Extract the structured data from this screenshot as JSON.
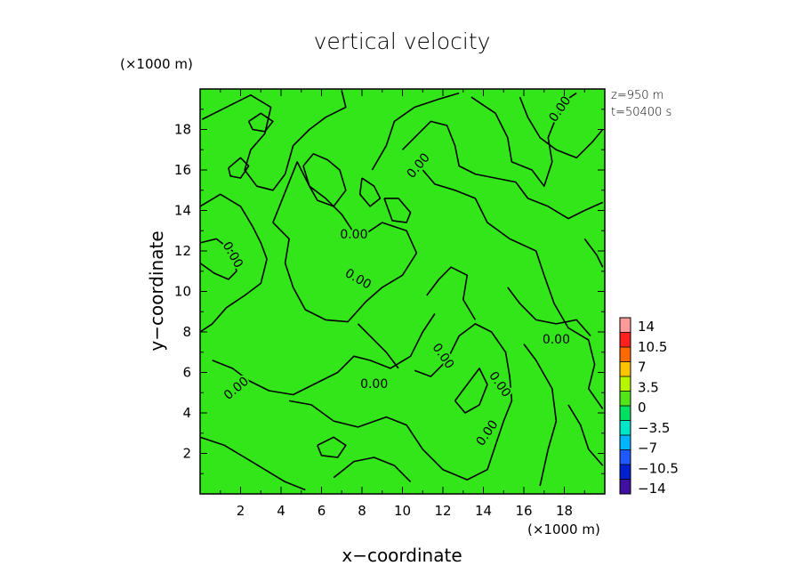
{
  "chart_data": {
    "type": "heatmap",
    "title": "vertical velocity",
    "xlabel": "x−coordinate",
    "ylabel": "y−coordinate",
    "x_unit": "(×1000 m)",
    "y_unit": "(×1000 m)",
    "xlim": [
      0,
      20
    ],
    "ylim": [
      0,
      20
    ],
    "x_ticks": [
      "2",
      "4",
      "6",
      "8",
      "10",
      "12",
      "14",
      "16",
      "18"
    ],
    "y_ticks": [
      "2",
      "4",
      "6",
      "8",
      "10",
      "12",
      "14",
      "16",
      "18"
    ],
    "annotations": [
      "z=950  m",
      "t=50400  s"
    ],
    "contour_level": 0.0,
    "contour_label": "0.00",
    "field_color": "#33e61a",
    "colorbar": {
      "labels": [
        "14",
        "10.5",
        "7",
        "3.5",
        "0",
        "−3.5",
        "−7",
        "−10.5",
        "−14"
      ],
      "colors": [
        "#ff9a9a",
        "#ff2020",
        "#ff6a00",
        "#ffc400",
        "#b8f500",
        "#52e61a",
        "#00e060",
        "#00e6c8",
        "#00b4ff",
        "#1e5aff",
        "#0020d0",
        "#4010a0"
      ]
    },
    "contours": [
      [
        [
          0.1,
          18.5
        ],
        [
          1.5,
          19.2
        ],
        [
          2.5,
          19.7
        ],
        [
          3.5,
          19.1
        ],
        [
          3.2,
          17.8
        ],
        [
          2.5,
          17.0
        ],
        [
          2.2,
          16.0
        ],
        [
          2.8,
          15.2
        ],
        [
          3.6,
          15.0
        ],
        [
          4.2,
          15.8
        ],
        [
          4.6,
          17.2
        ],
        [
          5.4,
          18.0
        ],
        [
          6.2,
          18.6
        ],
        [
          7.2,
          19.1
        ],
        [
          7.0,
          19.9
        ]
      ],
      [
        [
          0.0,
          14.2
        ],
        [
          1.0,
          14.8
        ],
        [
          2.0,
          14.2
        ],
        [
          2.6,
          13.2
        ],
        [
          3.0,
          12.4
        ],
        [
          3.3,
          11.6
        ],
        [
          3.0,
          10.4
        ],
        [
          2.2,
          9.8
        ],
        [
          1.3,
          9.2
        ],
        [
          0.6,
          8.4
        ],
        [
          0.0,
          8.0
        ]
      ],
      [
        [
          0.0,
          12.4
        ],
        [
          0.8,
          12.6
        ],
        [
          1.6,
          12.0
        ],
        [
          1.8,
          11.0
        ],
        [
          1.4,
          10.6
        ],
        [
          0.7,
          10.9
        ],
        [
          0.0,
          11.4
        ]
      ],
      [
        [
          3.6,
          13.4
        ],
        [
          4.4,
          12.6
        ],
        [
          4.2,
          11.4
        ],
        [
          4.6,
          10.2
        ],
        [
          5.2,
          9.1
        ],
        [
          6.2,
          8.6
        ],
        [
          7.3,
          8.5
        ],
        [
          8.2,
          9.5
        ],
        [
          9.0,
          10.2
        ],
        [
          10.0,
          10.8
        ],
        [
          10.7,
          11.9
        ],
        [
          10.2,
          13.0
        ],
        [
          9.0,
          13.4
        ],
        [
          7.8,
          12.6
        ],
        [
          7.0,
          13.8
        ],
        [
          6.2,
          14.6
        ],
        [
          5.4,
          15.2
        ],
        [
          4.8,
          16.4
        ],
        [
          4.4,
          15.4
        ],
        [
          4.0,
          14.4
        ],
        [
          3.6,
          13.4
        ]
      ],
      [
        [
          5.1,
          16.2
        ],
        [
          5.4,
          15.2
        ],
        [
          5.8,
          14.5
        ],
        [
          6.6,
          14.2
        ],
        [
          7.2,
          15.0
        ],
        [
          6.9,
          16.0
        ],
        [
          6.3,
          16.5
        ],
        [
          5.6,
          16.8
        ],
        [
          5.1,
          16.2
        ]
      ],
      [
        [
          8.5,
          16.0
        ],
        [
          9.2,
          17.2
        ],
        [
          9.6,
          18.4
        ],
        [
          10.6,
          19.1
        ],
        [
          11.8,
          19.5
        ],
        [
          12.8,
          19.8
        ]
      ],
      [
        [
          9.1,
          14.6
        ],
        [
          9.8,
          14.6
        ],
        [
          10.4,
          13.9
        ],
        [
          10.2,
          13.4
        ],
        [
          9.5,
          13.5
        ],
        [
          9.1,
          14.6
        ]
      ],
      [
        [
          11.0,
          16.0
        ],
        [
          11.6,
          15.3
        ],
        [
          12.6,
          15.0
        ],
        [
          13.6,
          14.6
        ],
        [
          14.2,
          13.4
        ],
        [
          15.3,
          12.6
        ],
        [
          16.6,
          12.0
        ],
        [
          17.0,
          10.8
        ],
        [
          17.5,
          9.4
        ],
        [
          18.2,
          8.2
        ],
        [
          19.2,
          7.6
        ],
        [
          19.5,
          6.4
        ],
        [
          19.2,
          5.2
        ],
        [
          19.9,
          4.2
        ]
      ],
      [
        [
          0.6,
          6.6
        ],
        [
          1.6,
          6.2
        ],
        [
          2.4,
          5.6
        ],
        [
          3.4,
          5.1
        ],
        [
          4.6,
          4.9
        ],
        [
          5.6,
          5.4
        ],
        [
          6.8,
          6.0
        ],
        [
          7.6,
          6.8
        ],
        [
          8.4,
          6.6
        ],
        [
          9.4,
          6.2
        ],
        [
          10.4,
          6.8
        ],
        [
          11.0,
          8.0
        ],
        [
          11.6,
          8.9
        ]
      ],
      [
        [
          4.4,
          4.6
        ],
        [
          5.5,
          4.4
        ],
        [
          6.6,
          3.6
        ],
        [
          7.8,
          3.3
        ],
        [
          9.2,
          3.8
        ],
        [
          10.2,
          3.4
        ],
        [
          11.0,
          2.2
        ],
        [
          12.0,
          1.2
        ],
        [
          13.2,
          0.7
        ],
        [
          14.2,
          1.2
        ],
        [
          14.6,
          2.4
        ],
        [
          15.0,
          3.6
        ],
        [
          15.4,
          4.6
        ],
        [
          15.3,
          5.8
        ],
        [
          15.1,
          7.0
        ],
        [
          14.4,
          8.0
        ],
        [
          13.6,
          8.4
        ],
        [
          12.8,
          7.8
        ],
        [
          12.2,
          6.6
        ],
        [
          11.4,
          5.8
        ],
        [
          10.6,
          6.1
        ]
      ],
      [
        [
          7.8,
          8.4
        ],
        [
          8.6,
          7.6
        ],
        [
          9.2,
          7.0
        ],
        [
          9.8,
          6.2
        ]
      ],
      [
        [
          11.2,
          9.8
        ],
        [
          11.8,
          10.6
        ],
        [
          12.4,
          11.2
        ],
        [
          13.2,
          10.8
        ],
        [
          13.0,
          9.6
        ],
        [
          13.6,
          8.6
        ]
      ],
      [
        [
          15.2,
          10.2
        ],
        [
          15.8,
          9.4
        ],
        [
          16.6,
          8.6
        ],
        [
          17.6,
          8.4
        ],
        [
          18.6,
          8.6
        ],
        [
          19.3,
          7.8
        ]
      ],
      [
        [
          16.0,
          7.4
        ],
        [
          16.6,
          6.6
        ],
        [
          17.4,
          5.2
        ],
        [
          17.6,
          3.6
        ],
        [
          17.2,
          2.2
        ],
        [
          16.8,
          0.4
        ]
      ],
      [
        [
          10.0,
          17.0
        ],
        [
          10.8,
          17.8
        ],
        [
          11.4,
          18.4
        ],
        [
          12.2,
          18.2
        ],
        [
          12.6,
          17.2
        ],
        [
          12.8,
          16.2
        ],
        [
          13.6,
          15.8
        ],
        [
          14.6,
          15.6
        ],
        [
          15.6,
          15.4
        ],
        [
          16.2,
          14.6
        ],
        [
          17.2,
          14.2
        ],
        [
          18.2,
          13.6
        ],
        [
          19.0,
          14.0
        ],
        [
          19.9,
          14.4
        ]
      ],
      [
        [
          13.4,
          19.6
        ],
        [
          14.6,
          18.8
        ],
        [
          15.2,
          17.6
        ],
        [
          15.4,
          16.4
        ],
        [
          16.4,
          16.0
        ],
        [
          17.0,
          15.2
        ],
        [
          17.4,
          16.4
        ],
        [
          17.2,
          17.6
        ],
        [
          17.6,
          18.6
        ],
        [
          18.0,
          19.4
        ],
        [
          18.6,
          19.8
        ]
      ],
      [
        [
          15.8,
          19.6
        ],
        [
          16.2,
          18.6
        ],
        [
          16.8,
          17.6
        ],
        [
          17.6,
          17.0
        ],
        [
          18.6,
          16.6
        ],
        [
          19.4,
          17.4
        ],
        [
          19.9,
          18.0
        ]
      ],
      [
        [
          19.0,
          12.6
        ],
        [
          19.6,
          11.8
        ],
        [
          19.9,
          11.2
        ]
      ],
      [
        [
          0.0,
          2.8
        ],
        [
          1.2,
          2.4
        ],
        [
          2.2,
          1.8
        ],
        [
          3.2,
          1.2
        ],
        [
          4.2,
          0.6
        ],
        [
          5.2,
          0.2
        ]
      ],
      [
        [
          18.2,
          4.4
        ],
        [
          18.8,
          3.4
        ],
        [
          19.2,
          2.2
        ],
        [
          19.9,
          1.4
        ]
      ],
      [
        [
          6.6,
          0.8
        ],
        [
          7.6,
          1.6
        ],
        [
          8.6,
          1.8
        ],
        [
          9.6,
          1.4
        ],
        [
          10.4,
          0.6
        ]
      ],
      [
        [
          12.6,
          4.6
        ],
        [
          13.2,
          5.4
        ],
        [
          13.8,
          6.2
        ],
        [
          14.2,
          5.4
        ],
        [
          13.8,
          4.4
        ],
        [
          13.1,
          4.0
        ],
        [
          12.6,
          4.6
        ]
      ],
      [
        [
          2.4,
          18.4
        ],
        [
          3.0,
          18.8
        ],
        [
          3.6,
          18.4
        ],
        [
          3.2,
          17.9
        ],
        [
          2.6,
          18.0
        ],
        [
          2.4,
          18.4
        ]
      ],
      [
        [
          1.4,
          16.1
        ],
        [
          2.0,
          16.6
        ],
        [
          2.4,
          16.2
        ],
        [
          2.0,
          15.6
        ],
        [
          1.5,
          15.7
        ],
        [
          1.4,
          16.1
        ]
      ],
      [
        [
          8.0,
          15.6
        ],
        [
          8.6,
          15.2
        ],
        [
          8.9,
          14.6
        ],
        [
          8.4,
          14.2
        ],
        [
          7.9,
          14.8
        ],
        [
          8.0,
          15.6
        ]
      ],
      [
        [
          5.8,
          2.4
        ],
        [
          6.6,
          2.8
        ],
        [
          7.2,
          2.4
        ],
        [
          6.8,
          1.8
        ],
        [
          6.0,
          1.9
        ],
        [
          5.8,
          2.4
        ]
      ]
    ],
    "contour_labels": [
      {
        "x": 7.6,
        "y": 12.8,
        "angle": 0
      },
      {
        "x": 8.6,
        "y": 5.4,
        "angle": 0
      },
      {
        "x": 17.6,
        "y": 7.6,
        "angle": 0
      },
      {
        "x": 1.8,
        "y": 5.2,
        "angle": -40
      },
      {
        "x": 1.6,
        "y": 11.8,
        "angle": 60
      },
      {
        "x": 10.8,
        "y": 16.2,
        "angle": -50
      },
      {
        "x": 17.8,
        "y": 19.0,
        "angle": -55
      },
      {
        "x": 12.0,
        "y": 6.8,
        "angle": 55
      },
      {
        "x": 14.8,
        "y": 5.4,
        "angle": 55
      },
      {
        "x": 14.2,
        "y": 3.0,
        "angle": -55
      },
      {
        "x": 7.8,
        "y": 10.6,
        "angle": 30
      }
    ]
  }
}
